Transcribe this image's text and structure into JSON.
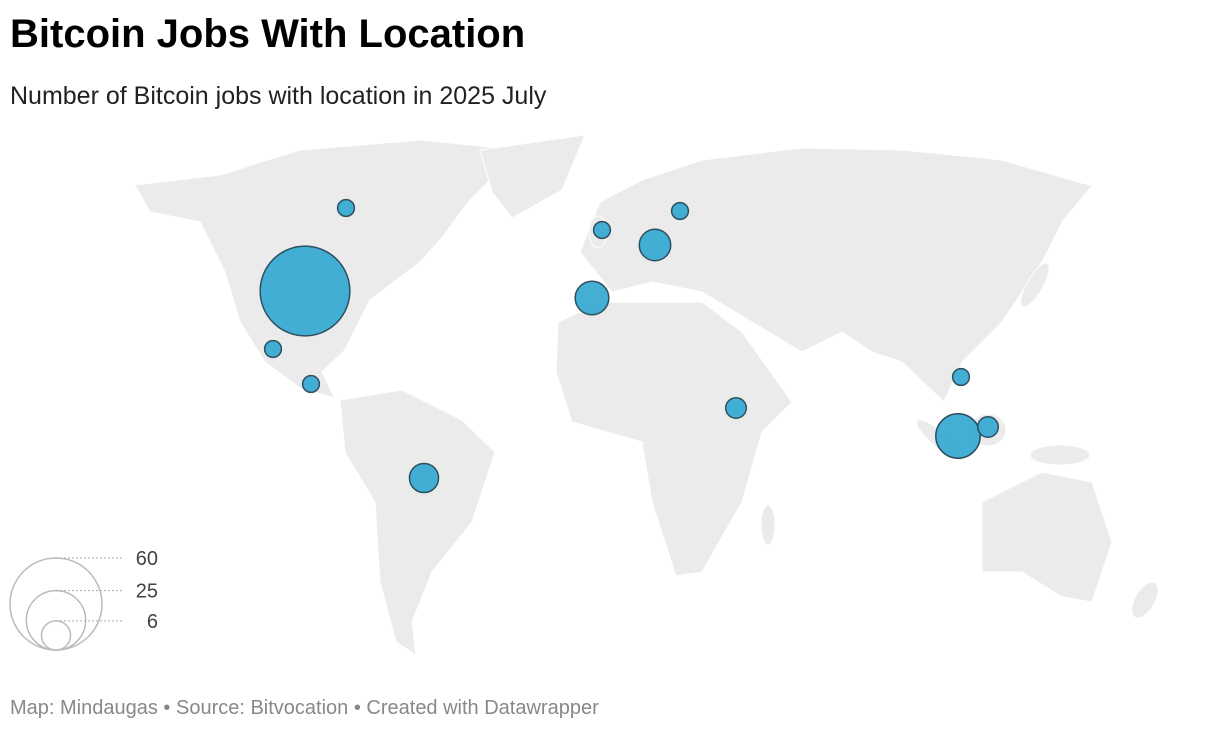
{
  "chart_data": {
    "type": "bubble",
    "title": "Bitcoin Jobs With Location",
    "subtitle": "Number of Bitcoin jobs with location in 2025 July",
    "values": [
      57,
      2,
      2,
      2,
      6,
      2,
      2,
      7,
      8,
      3,
      2,
      14,
      3
    ],
    "color": "#39abd3",
    "size_legend": [
      60,
      25,
      6
    ],
    "footer": "Map: Mindaugas • Source: Bitvocation • Created with Datawrapper"
  }
}
